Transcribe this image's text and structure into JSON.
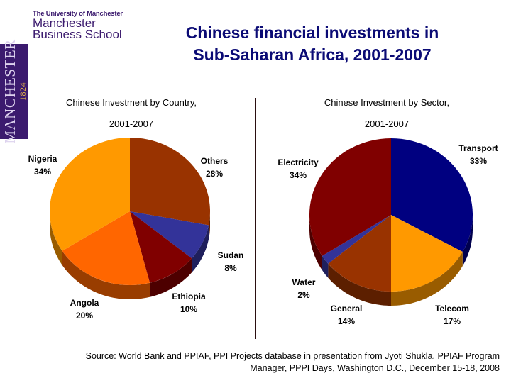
{
  "logo": {
    "line1": "The University of Manchester",
    "line2": "Manchester",
    "line3": "Business School",
    "bar_text": "MANCHESTER",
    "bar_year": "1824"
  },
  "title": {
    "line1": "Chinese financial investments in",
    "line2": "Sub-Saharan Africa, 2001-2007"
  },
  "charts": {
    "left": {
      "title_line1": "Chinese Investment by Country,",
      "title_line2": "2001-2007"
    },
    "right": {
      "title_line1": "Chinese Investment by Sector,",
      "title_line2": "2001-2007"
    }
  },
  "source": {
    "line1": "Source: World Bank and PPIAF, PPI Projects database in presentation from Jyoti Shukla, PPIAF Program",
    "line2": "Manager, PPPI Days, Washington D.C., December 15-18, 2008"
  },
  "chart_data": [
    {
      "type": "pie",
      "title": "Chinese Investment by Country, 2001-2007",
      "categories": [
        "Others",
        "Sudan",
        "Ethiopia",
        "Angola",
        "Nigeria"
      ],
      "values": [
        28,
        8,
        10,
        20,
        34
      ],
      "labels": [
        "Others 28%",
        "Sudan 8%",
        "Ethiopia 10%",
        "Angola 20%",
        "Nigeria 34%"
      ],
      "colors": [
        "#993300",
        "#333399",
        "#800000",
        "#ff6600",
        "#ff9900"
      ],
      "unit": "%",
      "style": "3d"
    },
    {
      "type": "pie",
      "title": "Chinese Investment by Sector, 2001-2007",
      "categories": [
        "Transport",
        "Telecom",
        "General",
        "Water",
        "Electricity"
      ],
      "values": [
        33,
        17,
        14,
        2,
        34
      ],
      "labels": [
        "Transport 33%",
        "Telecom 17%",
        "General 14%",
        "Water 2%",
        "Electricity 34%"
      ],
      "colors": [
        "#000080",
        "#ff9900",
        "#993300",
        "#333399",
        "#800000"
      ],
      "unit": "%",
      "style": "3d"
    }
  ]
}
